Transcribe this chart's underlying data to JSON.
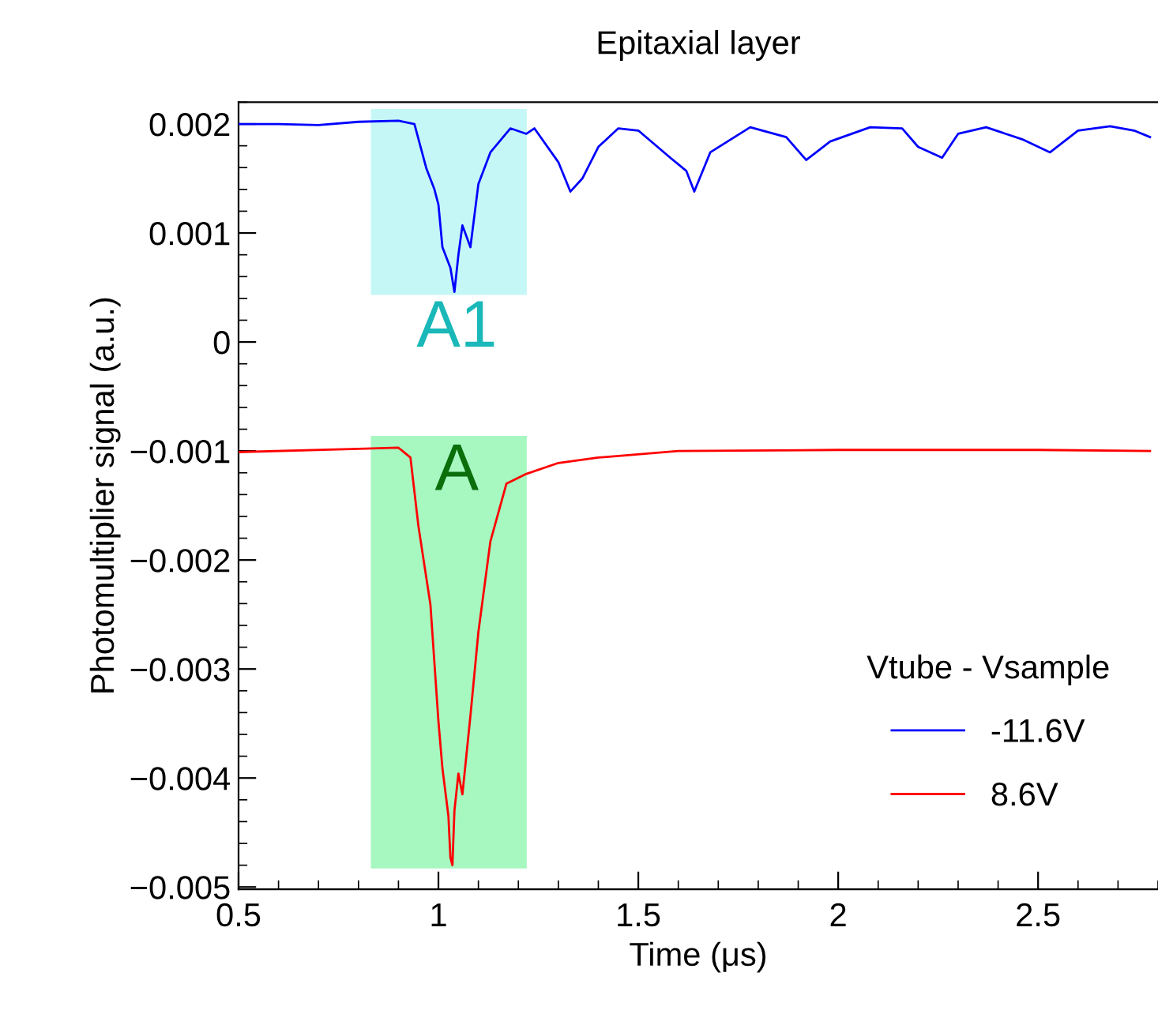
{
  "chart_data": {
    "type": "line",
    "title": "Epitaxial layer",
    "xlabel": "Time (μs)",
    "ylabel": "Photomultiplier signal (a.u.)",
    "legend_title": "Vtube - Vsample",
    "xlim": [
      0.5,
      2.8
    ],
    "xticks": [
      0.5,
      1,
      1.5,
      2,
      2.5
    ],
    "ylim": [
      -0.00502,
      0.0022
    ],
    "yticks": [
      {
        "value": -0.005,
        "label": "−0.005"
      },
      {
        "value": -0.004,
        "label": "−0.004"
      },
      {
        "value": -0.003,
        "label": "−0.003"
      },
      {
        "value": -0.002,
        "label": "−0.002"
      },
      {
        "value": -0.001,
        "label": "−0.001"
      },
      0,
      0.001,
      0.002
    ],
    "grid": false,
    "legend": "bottom right",
    "marker": "none",
    "line_style": "solid",
    "series": [
      {
        "name": "-11.6V",
        "color": "#0000ff",
        "x": [
          0.5,
          0.6,
          0.7,
          0.8,
          0.9,
          0.94,
          0.97,
          0.99,
          1.0,
          1.01,
          1.03,
          1.04,
          1.05,
          1.06,
          1.08,
          1.1,
          1.13,
          1.18,
          1.22,
          1.24,
          1.3,
          1.33,
          1.36,
          1.4,
          1.45,
          1.5,
          1.58,
          1.62,
          1.64,
          1.68,
          1.78,
          1.87,
          1.92,
          1.98,
          2.08,
          2.16,
          2.2,
          2.26,
          2.3,
          2.37,
          2.46,
          2.53,
          2.6,
          2.68,
          2.74,
          2.78
        ],
        "values": [
          0.002,
          0.002,
          0.00199,
          0.00202,
          0.00203,
          0.002,
          0.00159,
          0.0014,
          0.00126,
          0.00087,
          0.00068,
          0.00046,
          0.0008,
          0.00107,
          0.00087,
          0.00145,
          0.00174,
          0.00196,
          0.00191,
          0.00196,
          0.00165,
          0.00138,
          0.0015,
          0.00179,
          0.00196,
          0.00194,
          0.00169,
          0.00157,
          0.00138,
          0.00174,
          0.00197,
          0.00188,
          0.00167,
          0.00184,
          0.00197,
          0.00196,
          0.00179,
          0.00169,
          0.00191,
          0.00197,
          0.00186,
          0.00174,
          0.00194,
          0.00198,
          0.00194,
          0.00188
        ]
      },
      {
        "name": "8.6V",
        "color": "#ff0000",
        "x": [
          0.5,
          0.8,
          0.9,
          0.93,
          0.95,
          0.98,
          1.0,
          1.01,
          1.025,
          1.03,
          1.035,
          1.04,
          1.05,
          1.06,
          1.08,
          1.1,
          1.13,
          1.17,
          1.22,
          1.3,
          1.4,
          1.6,
          2.0,
          2.5,
          2.78
        ],
        "values": [
          -0.00101,
          -0.00098,
          -0.00097,
          -0.00106,
          -0.00169,
          -0.00241,
          -0.00348,
          -0.00391,
          -0.00435,
          -0.00473,
          -0.0048,
          -0.0043,
          -0.00396,
          -0.00415,
          -0.00343,
          -0.00266,
          -0.00183,
          -0.0013,
          -0.00121,
          -0.00111,
          -0.00106,
          -0.001,
          -0.00099,
          -0.00099,
          -0.001
        ]
      }
    ],
    "bands": [
      {
        "axis": "x",
        "from": 0.831,
        "to": 1.221,
        "color": "#c5f7f7",
        "label": "A1"
      },
      {
        "axis": "x",
        "from": 0.831,
        "to": 1.221,
        "color": "#a6f7c0",
        "label": "A"
      }
    ]
  }
}
